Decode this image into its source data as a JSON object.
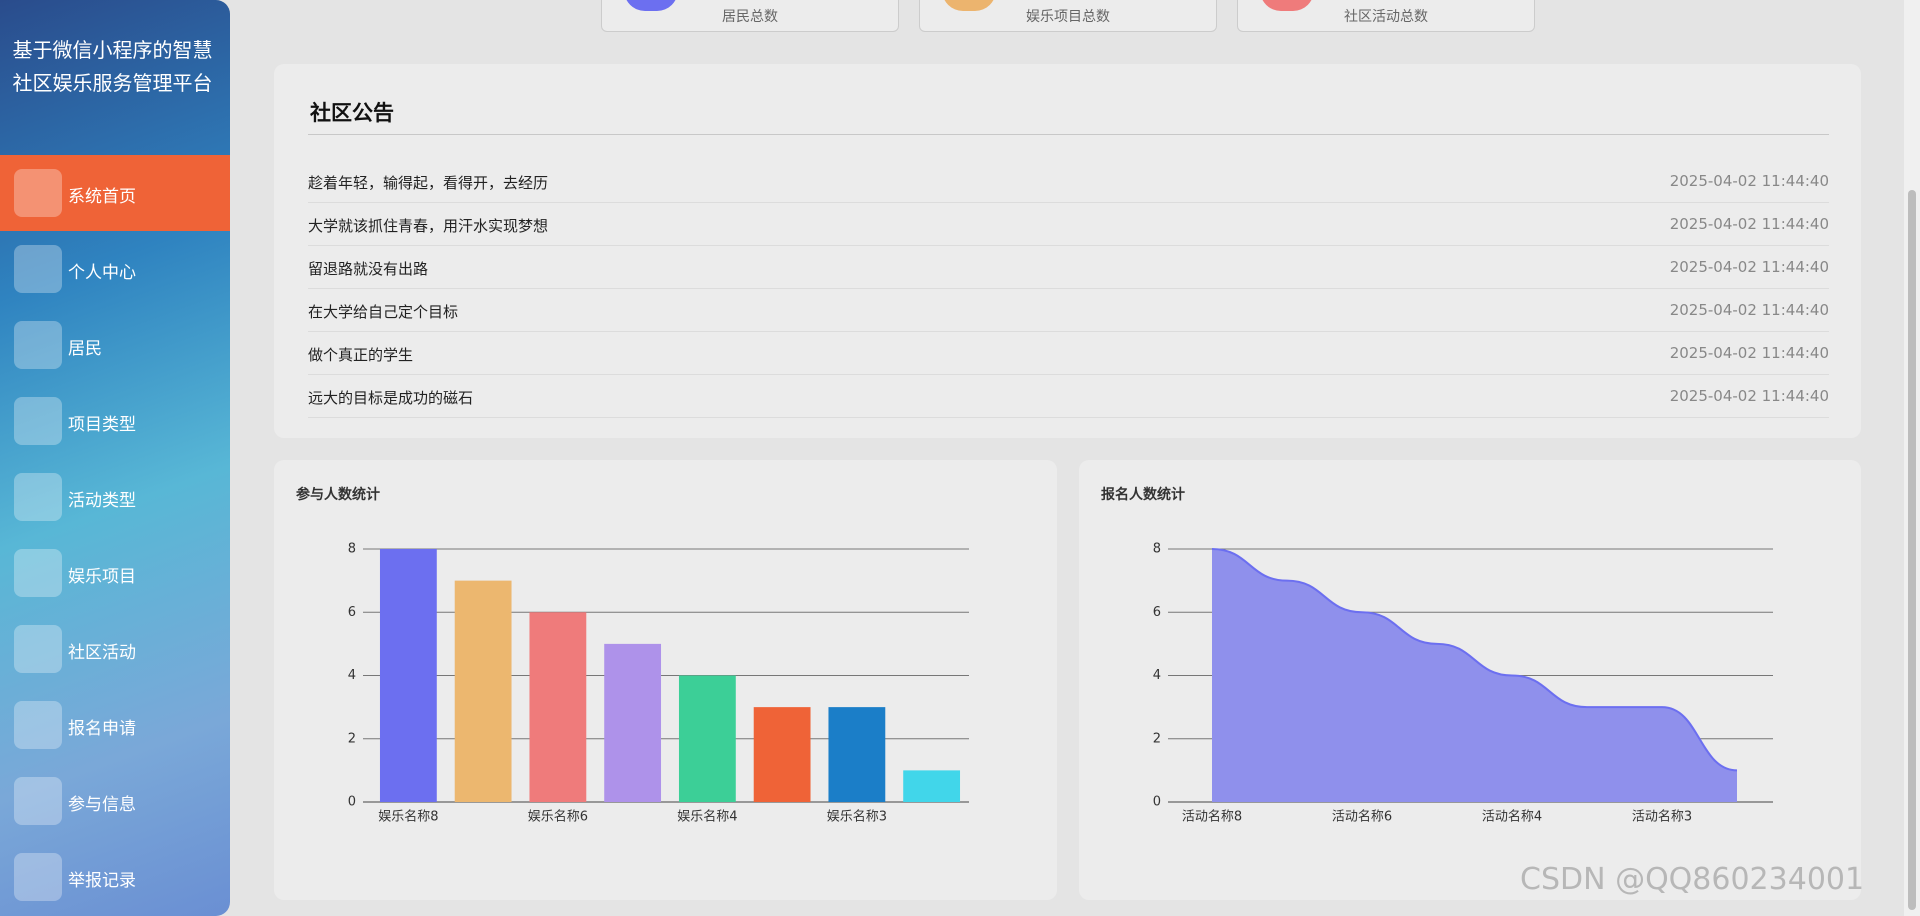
{
  "sidebar": {
    "title": "基于微信小程序的智慧社区娱乐服务管理平台",
    "menu": [
      "系统首页",
      "个人中心",
      "居民",
      "项目类型",
      "活动类型",
      "娱乐项目",
      "社区活动",
      "报名申请",
      "参与信息",
      "举报记录"
    ]
  },
  "stats": [
    "居民总数",
    "娱乐项目总数",
    "社区活动总数"
  ],
  "notice": {
    "title": "社区公告",
    "rows": [
      {
        "text": "趁着年轻，输得起，看得开，去经历",
        "time": "2025-04-02 11:44:40"
      },
      {
        "text": "大学就该抓住青春，用汗水实现梦想",
        "time": "2025-04-02 11:44:40"
      },
      {
        "text": "留退路就没有出路",
        "time": "2025-04-02 11:44:40"
      },
      {
        "text": "在大学给自己定个目标",
        "time": "2025-04-02 11:44:40"
      },
      {
        "text": "做个真正的学生",
        "time": "2025-04-02 11:44:40"
      },
      {
        "text": "远大的目标是成功的磁石",
        "time": "2025-04-02 11:44:40"
      }
    ]
  },
  "chart_data": [
    {
      "type": "bar",
      "title": "参与人数统计",
      "categories": [
        "娱乐名称8",
        null,
        "娱乐名称6",
        null,
        "娱乐名称4",
        null,
        "娱乐名称3",
        null
      ],
      "values": [
        8,
        7,
        6,
        5,
        4,
        3,
        3,
        1
      ],
      "colors": [
        "#6c6ff0",
        "#ecb76f",
        "#ef7b7b",
        "#ae92ea",
        "#3ccf97",
        "#ef6337",
        "#1b7ec8",
        "#41d6ea"
      ],
      "ylim": [
        0,
        8
      ],
      "yticks": [
        0,
        2,
        4,
        6,
        8
      ],
      "grid": true
    },
    {
      "type": "area",
      "title": "报名人数统计",
      "categories": [
        "活动名称8",
        null,
        "活动名称6",
        null,
        "活动名称4",
        null,
        "活动名称3",
        null
      ],
      "values": [
        8,
        7,
        6,
        5,
        4,
        3,
        3,
        1
      ],
      "color": "#6c6ff0",
      "fill": "#8f90ec",
      "ylim": [
        0,
        8
      ],
      "yticks": [
        0,
        2,
        4,
        6,
        8
      ],
      "grid": true
    }
  ],
  "watermark": "CSDN @QQ860234001"
}
